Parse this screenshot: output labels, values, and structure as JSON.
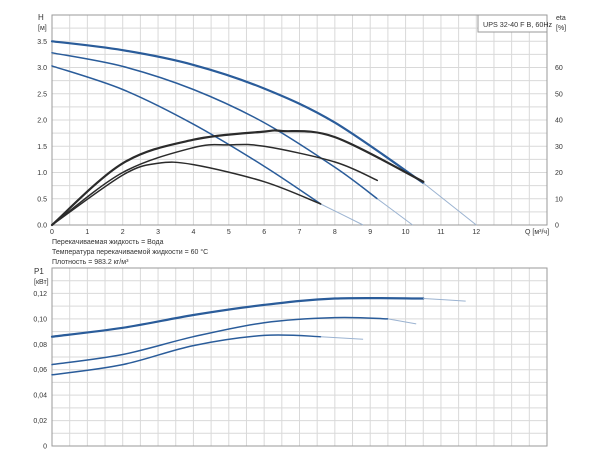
{
  "title_box": "UPS 32-40 F B, 60Hz",
  "notes": [
    "Перекачиваемая жидкость = Вода",
    "Температура перекачиваемой жидкости = 60 °C",
    "Плотность = 983.2 кг/м³"
  ],
  "colors": {
    "head": "#2a5c9a",
    "eta": "#2b2b2b",
    "power": "#2a5c9a",
    "grid": "#d9d9d9"
  },
  "chart_data": [
    {
      "type": "line",
      "xlabel": "Q [м³/ч]",
      "ylabel": "H [м]",
      "y2label": "eta [%]",
      "xlim": [
        0,
        14
      ],
      "ylim": [
        0,
        4.0
      ],
      "y2lim": [
        0,
        80
      ],
      "xticks": [
        0,
        1,
        2,
        3,
        4,
        5,
        6,
        7,
        8,
        9,
        10,
        11,
        12
      ],
      "yticks": [
        0,
        0.5,
        1.0,
        1.5,
        2.0,
        2.5,
        3.0,
        3.5
      ],
      "ytick_labels": [
        "0.0",
        "0.5",
        "1.0",
        "1.5",
        "2.0",
        "2.5",
        "3.0",
        "3.5"
      ],
      "y2ticks": [
        0,
        10,
        20,
        30,
        40,
        50,
        60
      ],
      "grid": true,
      "series": [
        {
          "kind": "head",
          "x": [
            0,
            2,
            4,
            6,
            8,
            10.5
          ],
          "y": [
            3.5,
            3.33,
            3.05,
            2.6,
            1.95,
            0.8
          ],
          "faded_x": [
            10.5,
            12.0
          ],
          "faded_y": [
            0.8,
            0.0
          ],
          "width": 2.2
        },
        {
          "kind": "head",
          "x": [
            0,
            2,
            4,
            6,
            8,
            9.2
          ],
          "y": [
            3.28,
            3.02,
            2.58,
            1.95,
            1.1,
            0.5
          ],
          "faded_x": [
            9.2,
            10.2
          ],
          "faded_y": [
            0.5,
            0.0
          ],
          "width": 1.5
        },
        {
          "kind": "head",
          "x": [
            0,
            2,
            4,
            6,
            7.6
          ],
          "y": [
            3.03,
            2.58,
            1.92,
            1.12,
            0.4
          ],
          "faded_x": [
            7.6,
            8.8
          ],
          "faded_y": [
            0.4,
            0.0
          ],
          "width": 1.5
        },
        {
          "kind": "eta",
          "x": [
            0,
            2,
            4,
            6,
            6.5,
            8,
            10.5
          ],
          "y": [
            0,
            23.5,
            32.5,
            35.6,
            35.8,
            33.5,
            16.5
          ],
          "width": 2.2
        },
        {
          "kind": "eta",
          "x": [
            0,
            2,
            4,
            5,
            6,
            8,
            9.2
          ],
          "y": [
            0,
            20,
            29.5,
            30.5,
            30,
            24,
            17
          ],
          "width": 1.5
        },
        {
          "kind": "eta",
          "x": [
            0,
            2,
            3,
            4,
            6,
            7.6
          ],
          "y": [
            0,
            19,
            23.5,
            23,
            16.5,
            8
          ],
          "width": 1.5
        }
      ]
    },
    {
      "type": "line",
      "xlabel": "",
      "ylabel": "P1 [кВт]",
      "xlim": [
        0,
        14
      ],
      "ylim": [
        0,
        0.14
      ],
      "yticks": [
        0,
        0.02,
        0.04,
        0.06,
        0.08,
        0.1,
        0.12
      ],
      "ytick_labels": [
        "0",
        "0,02",
        "0,04",
        "0,06",
        "0,08",
        "0,10",
        "0,12"
      ],
      "grid": true,
      "series": [
        {
          "kind": "power",
          "x": [
            0,
            2,
            4,
            6,
            8,
            10.5
          ],
          "y": [
            0.086,
            0.093,
            0.103,
            0.111,
            0.116,
            0.116
          ],
          "faded_x": [
            10.5,
            11.7
          ],
          "faded_y": [
            0.116,
            0.114
          ],
          "width": 2.2
        },
        {
          "kind": "power",
          "x": [
            0,
            2,
            4,
            6,
            8,
            9.5
          ],
          "y": [
            0.064,
            0.072,
            0.086,
            0.097,
            0.101,
            0.1
          ],
          "faded_x": [
            9.5,
            10.3
          ],
          "faded_y": [
            0.1,
            0.096
          ],
          "width": 1.5
        },
        {
          "kind": "power",
          "x": [
            0,
            2,
            4,
            6,
            7.6
          ],
          "y": [
            0.056,
            0.064,
            0.079,
            0.087,
            0.086
          ],
          "faded_x": [
            7.6,
            8.8
          ],
          "faded_y": [
            0.086,
            0.084
          ],
          "width": 1.5
        }
      ]
    }
  ]
}
